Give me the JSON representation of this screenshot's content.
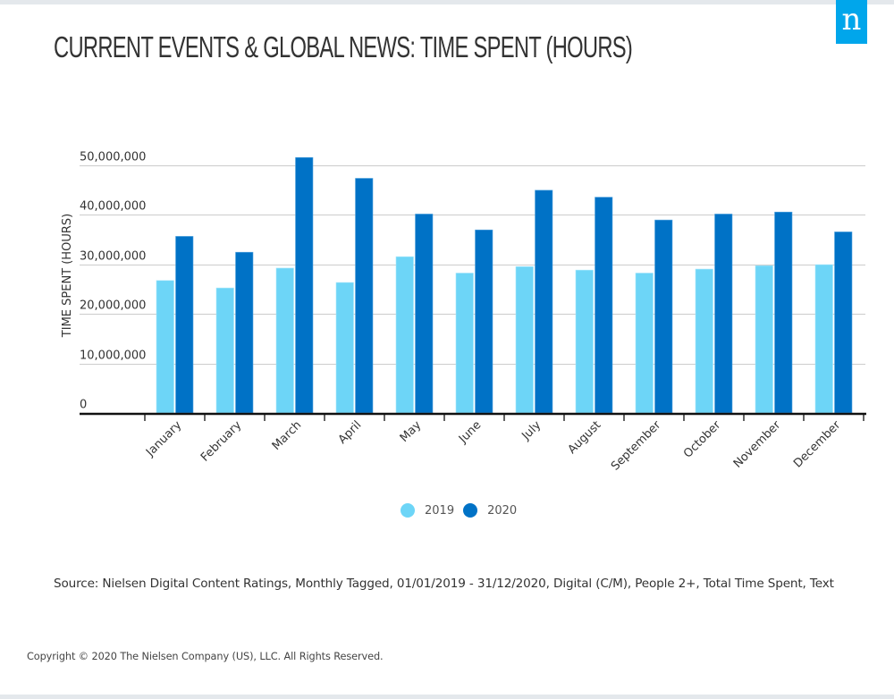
{
  "header": {
    "title": "CURRENT EVENTS & GLOBAL NEWS: TIME SPENT (HOURS)",
    "logo_letter": "n"
  },
  "colors": {
    "series_2019": "#6dd5f7",
    "series_2020": "#0072c6",
    "logo_bg": "#00a6eb",
    "grid": "#cccccc",
    "axis": "#111111"
  },
  "chart_data": {
    "type": "bar",
    "title": "CURRENT EVENTS & GLOBAL NEWS: TIME SPENT (HOURS)",
    "xlabel": "",
    "ylabel": "TIME SPENT (HOURS)",
    "ylim": [
      0,
      50000000
    ],
    "yticks": [
      0,
      10000000,
      20000000,
      30000000,
      40000000,
      50000000
    ],
    "ytick_labels": [
      "0",
      "10,000,000",
      "20,000,000",
      "30,000,000",
      "40,000,000",
      "50,000,000"
    ],
    "grid": true,
    "legend_position": "bottom-center",
    "categories": [
      "January",
      "February",
      "March",
      "April",
      "May",
      "June",
      "July",
      "August",
      "September",
      "October",
      "November",
      "December"
    ],
    "series": [
      {
        "name": "2019",
        "values": [
          26700000,
          25200000,
          29200000,
          26300000,
          31500000,
          28200000,
          29500000,
          28800000,
          28200000,
          29000000,
          29700000,
          29900000
        ]
      },
      {
        "name": "2020",
        "values": [
          35600000,
          32400000,
          51500000,
          47300000,
          40100000,
          36900000,
          44900000,
          43500000,
          38900000,
          40100000,
          40500000,
          36500000
        ]
      }
    ]
  },
  "legend": [
    {
      "label": "2019"
    },
    {
      "label": "2020"
    }
  ],
  "footer": {
    "source": "Source: Nielsen Digital Content Ratings, Monthly Tagged, 01/01/2019 - 31/12/2020, Digital (C/M), People 2+, Total Time Spent, Text",
    "copyright": "Copyright © 2020 The Nielsen Company (US), LLC. All Rights Reserved."
  }
}
